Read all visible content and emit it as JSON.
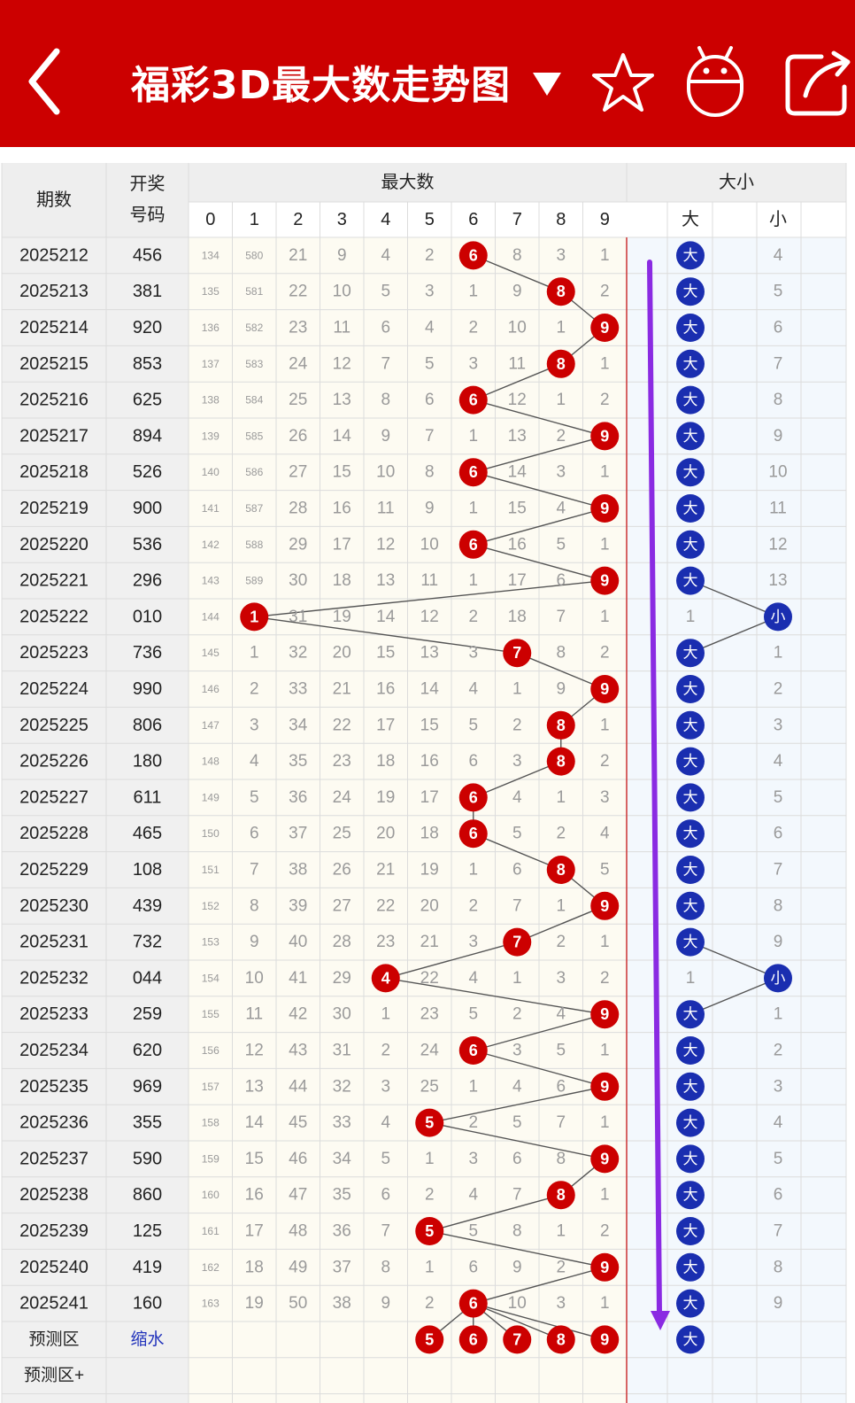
{
  "header": {
    "title": "福彩3D最大数走势图",
    "icons": [
      "back-arrow-icon",
      "dropdown-caret-icon",
      "star-icon",
      "robot-icon",
      "share-icon"
    ],
    "bg_color": "#cc0000"
  },
  "table": {
    "col_period": "期数",
    "col_draw_line1": "开奖",
    "col_draw_line2": "号码",
    "group_max": "最大数",
    "group_size": "大小",
    "digits": [
      "0",
      "1",
      "2",
      "3",
      "4",
      "5",
      "6",
      "7",
      "8",
      "9"
    ],
    "size_big": "大",
    "size_small": "小",
    "predict_label": "预测区",
    "predict_link": "缩水",
    "predict_plus": "预测区+",
    "predict_digits": [
      5,
      6,
      7,
      8,
      9
    ],
    "predict_size": "大"
  },
  "chart_data": {
    "type": "table",
    "colors": {
      "ball_red": "#cc0000",
      "ball_blue": "#1a2eb0",
      "arrow": "#8a2be2",
      "link": "#2233bb"
    },
    "rows": [
      {
        "period": "2025212",
        "draw": "456",
        "max": 6,
        "omit": [
          134,
          580,
          21,
          9,
          4,
          2,
          0,
          8,
          3,
          1
        ],
        "size": "大",
        "omit_big": 0,
        "omit_small": 4
      },
      {
        "period": "2025213",
        "draw": "381",
        "max": 8,
        "omit": [
          135,
          581,
          22,
          10,
          5,
          3,
          1,
          9,
          0,
          2
        ],
        "size": "大",
        "omit_big": 0,
        "omit_small": 5
      },
      {
        "period": "2025214",
        "draw": "920",
        "max": 9,
        "omit": [
          136,
          582,
          23,
          11,
          6,
          4,
          2,
          10,
          1,
          0
        ],
        "size": "大",
        "omit_big": 0,
        "omit_small": 6
      },
      {
        "period": "2025215",
        "draw": "853",
        "max": 8,
        "omit": [
          137,
          583,
          24,
          12,
          7,
          5,
          3,
          11,
          0,
          1
        ],
        "size": "大",
        "omit_big": 0,
        "omit_small": 7
      },
      {
        "period": "2025216",
        "draw": "625",
        "max": 6,
        "omit": [
          138,
          584,
          25,
          13,
          8,
          6,
          0,
          12,
          1,
          2
        ],
        "size": "大",
        "omit_big": 0,
        "omit_small": 8
      },
      {
        "period": "2025217",
        "draw": "894",
        "max": 9,
        "omit": [
          139,
          585,
          26,
          14,
          9,
          7,
          1,
          13,
          2,
          0
        ],
        "size": "大",
        "omit_big": 0,
        "omit_small": 9
      },
      {
        "period": "2025218",
        "draw": "526",
        "max": 6,
        "omit": [
          140,
          586,
          27,
          15,
          10,
          8,
          0,
          14,
          3,
          1
        ],
        "size": "大",
        "omit_big": 0,
        "omit_small": 10
      },
      {
        "period": "2025219",
        "draw": "900",
        "max": 9,
        "omit": [
          141,
          587,
          28,
          16,
          11,
          9,
          1,
          15,
          4,
          0
        ],
        "size": "大",
        "omit_big": 0,
        "omit_small": 11
      },
      {
        "period": "2025220",
        "draw": "536",
        "max": 6,
        "omit": [
          142,
          588,
          29,
          17,
          12,
          10,
          0,
          16,
          5,
          1
        ],
        "size": "大",
        "omit_big": 0,
        "omit_small": 12
      },
      {
        "period": "2025221",
        "draw": "296",
        "max": 9,
        "omit": [
          143,
          589,
          30,
          18,
          13,
          11,
          1,
          17,
          6,
          0
        ],
        "size": "大",
        "omit_big": 0,
        "omit_small": 13
      },
      {
        "period": "2025222",
        "draw": "010",
        "max": 1,
        "omit": [
          144,
          0,
          31,
          19,
          14,
          12,
          2,
          18,
          7,
          1
        ],
        "size": "小",
        "omit_big": 1,
        "omit_small": 0
      },
      {
        "period": "2025223",
        "draw": "736",
        "max": 7,
        "omit": [
          145,
          1,
          32,
          20,
          15,
          13,
          3,
          0,
          8,
          2
        ],
        "size": "大",
        "omit_big": 0,
        "omit_small": 1
      },
      {
        "period": "2025224",
        "draw": "990",
        "max": 9,
        "omit": [
          146,
          2,
          33,
          21,
          16,
          14,
          4,
          1,
          9,
          0
        ],
        "size": "大",
        "omit_big": 0,
        "omit_small": 2
      },
      {
        "period": "2025225",
        "draw": "806",
        "max": 8,
        "omit": [
          147,
          3,
          34,
          22,
          17,
          15,
          5,
          2,
          0,
          1
        ],
        "size": "大",
        "omit_big": 0,
        "omit_small": 3
      },
      {
        "period": "2025226",
        "draw": "180",
        "max": 8,
        "omit": [
          148,
          4,
          35,
          23,
          18,
          16,
          6,
          3,
          0,
          2
        ],
        "size": "大",
        "omit_big": 0,
        "omit_small": 4
      },
      {
        "period": "2025227",
        "draw": "611",
        "max": 6,
        "omit": [
          149,
          5,
          36,
          24,
          19,
          17,
          0,
          4,
          1,
          3
        ],
        "size": "大",
        "omit_big": 0,
        "omit_small": 5
      },
      {
        "period": "2025228",
        "draw": "465",
        "max": 6,
        "omit": [
          150,
          6,
          37,
          25,
          20,
          18,
          0,
          5,
          2,
          4
        ],
        "size": "大",
        "omit_big": 0,
        "omit_small": 6
      },
      {
        "period": "2025229",
        "draw": "108",
        "max": 8,
        "omit": [
          151,
          7,
          38,
          26,
          21,
          19,
          1,
          6,
          0,
          5
        ],
        "size": "大",
        "omit_big": 0,
        "omit_small": 7
      },
      {
        "period": "2025230",
        "draw": "439",
        "max": 9,
        "omit": [
          152,
          8,
          39,
          27,
          22,
          20,
          2,
          7,
          1,
          0
        ],
        "size": "大",
        "omit_big": 0,
        "omit_small": 8
      },
      {
        "period": "2025231",
        "draw": "732",
        "max": 7,
        "omit": [
          153,
          9,
          40,
          28,
          23,
          21,
          3,
          0,
          2,
          1
        ],
        "size": "大",
        "omit_big": 0,
        "omit_small": 9
      },
      {
        "period": "2025232",
        "draw": "044",
        "max": 4,
        "omit": [
          154,
          10,
          41,
          29,
          0,
          22,
          4,
          1,
          3,
          2
        ],
        "size": "小",
        "omit_big": 1,
        "omit_small": 0
      },
      {
        "period": "2025233",
        "draw": "259",
        "max": 9,
        "omit": [
          155,
          11,
          42,
          30,
          1,
          23,
          5,
          2,
          4,
          0
        ],
        "size": "大",
        "omit_big": 0,
        "omit_small": 1
      },
      {
        "period": "2025234",
        "draw": "620",
        "max": 6,
        "omit": [
          156,
          12,
          43,
          31,
          2,
          24,
          0,
          3,
          5,
          1
        ],
        "size": "大",
        "omit_big": 0,
        "omit_small": 2
      },
      {
        "period": "2025235",
        "draw": "969",
        "max": 9,
        "omit": [
          157,
          13,
          44,
          32,
          3,
          25,
          1,
          4,
          6,
          0
        ],
        "size": "大",
        "omit_big": 0,
        "omit_small": 3
      },
      {
        "period": "2025236",
        "draw": "355",
        "max": 5,
        "omit": [
          158,
          14,
          45,
          33,
          4,
          0,
          2,
          5,
          7,
          1
        ],
        "size": "大",
        "omit_big": 0,
        "omit_small": 4
      },
      {
        "period": "2025237",
        "draw": "590",
        "max": 9,
        "omit": [
          159,
          15,
          46,
          34,
          5,
          1,
          3,
          6,
          8,
          0
        ],
        "size": "大",
        "omit_big": 0,
        "omit_small": 5
      },
      {
        "period": "2025238",
        "draw": "860",
        "max": 8,
        "omit": [
          160,
          16,
          47,
          35,
          6,
          2,
          4,
          7,
          0,
          1
        ],
        "size": "大",
        "omit_big": 0,
        "omit_small": 6
      },
      {
        "period": "2025239",
        "draw": "125",
        "max": 5,
        "omit": [
          161,
          17,
          48,
          36,
          7,
          0,
          5,
          8,
          1,
          2
        ],
        "size": "大",
        "omit_big": 0,
        "omit_small": 7
      },
      {
        "period": "2025240",
        "draw": "419",
        "max": 9,
        "omit": [
          162,
          18,
          49,
          37,
          8,
          1,
          6,
          9,
          2,
          0
        ],
        "size": "大",
        "omit_big": 0,
        "omit_small": 8
      },
      {
        "period": "2025241",
        "draw": "160",
        "max": 6,
        "omit": [
          163,
          19,
          50,
          38,
          9,
          2,
          0,
          10,
          3,
          1
        ],
        "size": "大",
        "omit_big": 0,
        "omit_small": 9
      }
    ]
  }
}
